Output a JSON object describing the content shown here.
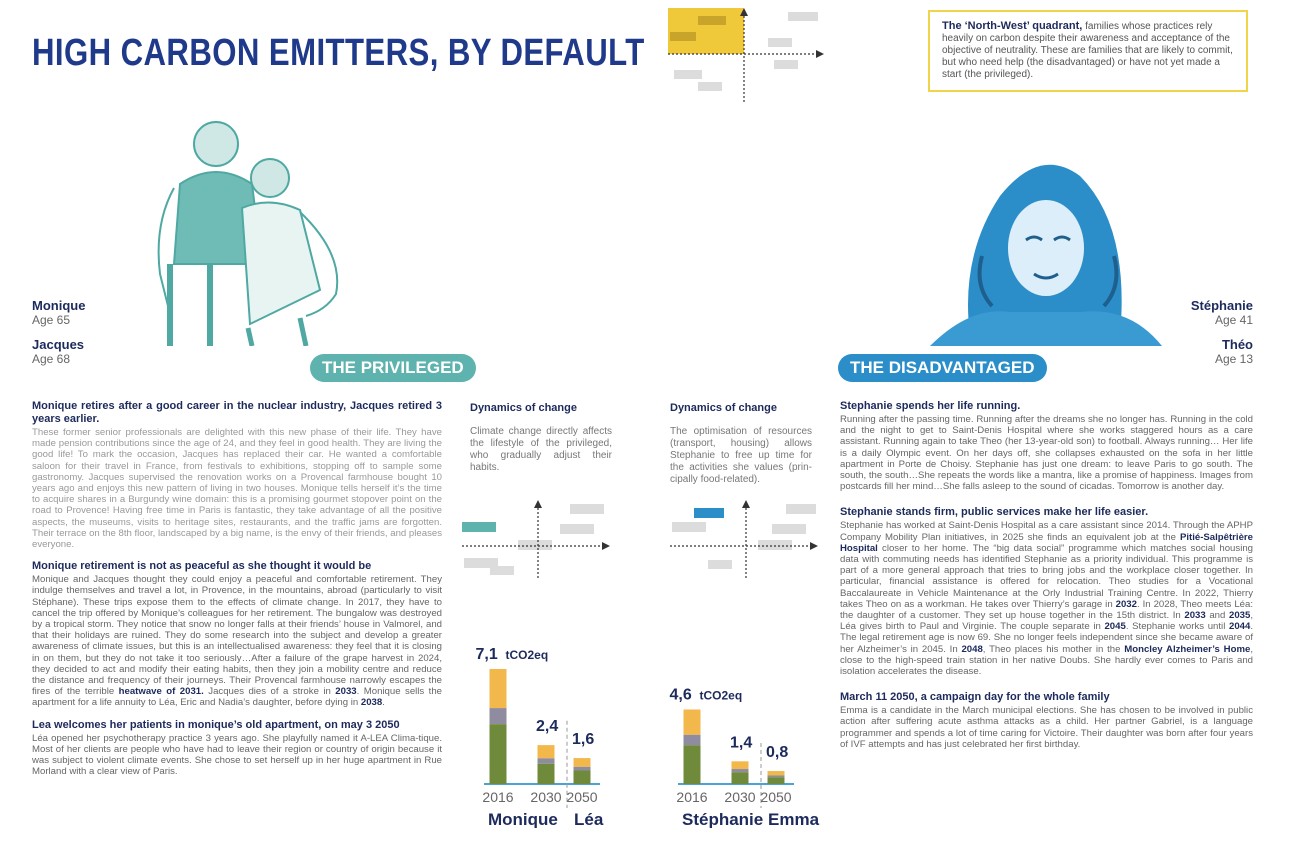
{
  "title": "HIGH CARBON EMITTERS, BY DEFAULT",
  "quadrant_note": {
    "heading": "The ‘North-West’ quadrant,",
    "text": "families whose practices rely heavily on carbon despite their awareness and acceptance of the objective of neutrality. These are families that are likely to commit, but who need help (the disadvantaged) or have not yet made a start (the privileged)."
  },
  "left_people": [
    {
      "name": "Monique",
      "age": "Age 65"
    },
    {
      "name": "Jacques",
      "age": "Age 68"
    }
  ],
  "right_people": [
    {
      "name": "Stéphanie",
      "age": "Age 41"
    },
    {
      "name": "Théo",
      "age": "Age 13"
    }
  ],
  "labels": {
    "privileged": "THE PRIVILEGED",
    "disadvantaged": "THE DISADVANTAGED"
  },
  "left_sections": [
    {
      "heading": "Monique retires after a good career in the nuclear industry, Jacques retired 3 years earlier.",
      "body": "These former senior professionals are delighted with this new phase of their life. They have made pension contributions since the age of 24, and they feel in good health. They are living the good life! To mark the occasion, Jacques has replaced their car. He wanted a comfortable saloon for their travel in France, from festivals to exhibitions, stopping off to sample some gastronomy. Jacques supervised the renovation works on a Provencal farmhouse bought 10 years ago and enjoys this new pattern of living in two houses. Monique tells herself it’s the time to acquire shares in a Burgundy wine domain: this is a promising gourmet stopover point on the road to Provence! Having free time in Paris is fantastic, they take advantage of all the positive aspects, the museums, visits to heritage sites, restaurants, and the traffic jams are forgotten. Their terrace on the 8th floor, landscaped by a big name, is the envy of their friends, and pleases everyone."
    },
    {
      "heading": "Monique retirement is not as peaceful as she thought it would be",
      "body1": "Monique and Jacques thought they could enjoy a peaceful and comfortable retirement. They indulge themselves and travel a lot, in Provence, in the mountains, abroad (particularly to visit Stéphane). These trips expose them to the effects of climate change. In 2017, they have to cancel the trip offered by Monique’s colleagues for her retirement. The bungalow was destroyed by a tropical storm. They notice that snow no longer falls at their friends’ house in Valmorel, and that their holidays are ruined. They do some research into the subject and develop a greater awareness of climate issues, but this is an intellectualised awareness: they feel that it is closing in on them, but they do not take it too seriously…After a failure of the grape harvest in 2024, they decided to act and modify their eating habits, then they join a mobility centre and reduce the distance and frequency of their journeys. Their Provencal farmhouse narrowly escapes the fires of the terrible ",
      "hl1": "heatwave of 2031.",
      "body2": " Jacques dies of a stroke in ",
      "hl2": "2033",
      "body3": ". Monique sells the apartment for a life annuity to Léa, Eric and Nadia’s daughter, before dying in ",
      "hl3": "2038",
      "body4": "."
    },
    {
      "heading": "Lea welcomes her patients in monique’s old apartment, on may 3 2050",
      "body": "Léa opened her psychotherapy practice 3 years ago. She playfully named it A-LEA Clima-tique. Most of her clients are people who have had to leave their region or country of origin because it was subject to violent climate events. She chose to set herself up in her huge apartment in Rue Morland with a clear view of Paris."
    }
  ],
  "dynamics": [
    {
      "heading": "Dynamics of change",
      "text": "Climate change directly affects the lifestyle of the privileged, who gradually adjust their habits."
    },
    {
      "heading": "Dynamics of change",
      "text": "The optimisation of resources (transport, housing) allows Stephanie to free up time for the activities she values (prin-cipally food-related)."
    }
  ],
  "right_sections": [
    {
      "heading": "Stephanie spends her life running.",
      "body": "Running after the passing time. Running after the dreams she no longer has. Running in the cold and the night to get to Saint-Denis Hospital where she works staggered hours as a care assistant. Running again to take Theo (her 13-year-old son) to football. Always running… Her life is a daily Olympic event. On her days off, she collapses exhausted on the sofa in her little apartment in Porte de Choisy. Stephanie has just one dream: to leave Paris to go south. The south, the south…She repeats the words like a mantra, like a promise of happiness. Images from postcards fill her mind…She falls asleep to the sound of cicadas. Tomorrow is another day."
    },
    {
      "heading": "Stephanie stands firm, public services make her life easier.",
      "b1": "Stephanie has worked at Saint-Denis Hospital as a care assistant since 2014. Through the APHP Company Mobility Plan initiatives, in 2025 she finds an equivalent job at the ",
      "h1": "Pitié-Salpêtrière Hospital",
      "b2": " closer to her home. The “big data social” programme which matches social housing data with commuting needs has identified Stephanie as a priority individual. This programme is part of a more general approach that tries to bring jobs and the workplace closer together. In particular, financial assistance is offered for relocation. Theo studies for a Vocational Baccalaureate in Vehicle Maintenance at the Orly Industrial Training Centre. In 2022, Thierry takes Theo on as a workman. He takes over Thierry’s garage in ",
      "h2": "2032",
      "b3": ". In 2028, Theo meets Léa: the daughter of a customer. They set up house together in the 15th district. In ",
      "h3": "2033",
      "b4": " and ",
      "h4": "2035",
      "b5": ", Léa gives birth to Paul and Virginie. The couple separate in ",
      "h5": "2045",
      "b6": ". Stephanie works until ",
      "h6": "2044",
      "b7": ". The legal retirement age is now 69. She no longer feels independent since she became aware of her Alzheimer’s in 2045. In ",
      "h7": "2048",
      "b8": ", Theo places his mother in the ",
      "h8": "Moncley Alzheimer’s Home",
      "b9": ", close to the high-speed train station in her native Doubs. She hardly ever comes to Paris and isolation accelerates the disease."
    },
    {
      "heading": "March 11 2050, a campaign day for the whole family",
      "body": "Emma is a candidate in the March municipal elections. She has chosen to be involved in public action after suffering acute asthma attacks as a child. Her partner Gabriel, is a language programmer and spends a lot of time caring for Victoire. Their daughter was born after four years of IVF attempts and has just celebrated her first birthday."
    }
  ],
  "chart_data": [
    {
      "type": "bar",
      "categories": [
        "2016",
        "2030",
        "2050"
      ],
      "values": [
        7.1,
        2.4,
        1.6
      ],
      "value_labels": [
        "7,1",
        "2,4",
        "1,6"
      ],
      "unit": "tCO2eq",
      "group_labels": [
        "Monique",
        "Léa"
      ],
      "colors": {
        "top": "#f2b84b",
        "mid": "#8e8c9e",
        "bottom": "#6f8a3a"
      }
    },
    {
      "type": "bar",
      "categories": [
        "2016",
        "2030",
        "2050"
      ],
      "values": [
        4.6,
        1.4,
        0.8
      ],
      "value_labels": [
        "4,6",
        "1,4",
        "0,8"
      ],
      "unit": "tCO2eq",
      "group_labels": [
        "Stéphanie",
        "Emma"
      ],
      "colors": {
        "top": "#f2b84b",
        "mid": "#8e8c9e",
        "bottom": "#6f8a3a"
      }
    }
  ],
  "colors": {
    "navy": "#1d2a5c",
    "teal": "#5fb3ae",
    "blue": "#2b8ec8",
    "yellow": "#f0d44a"
  }
}
